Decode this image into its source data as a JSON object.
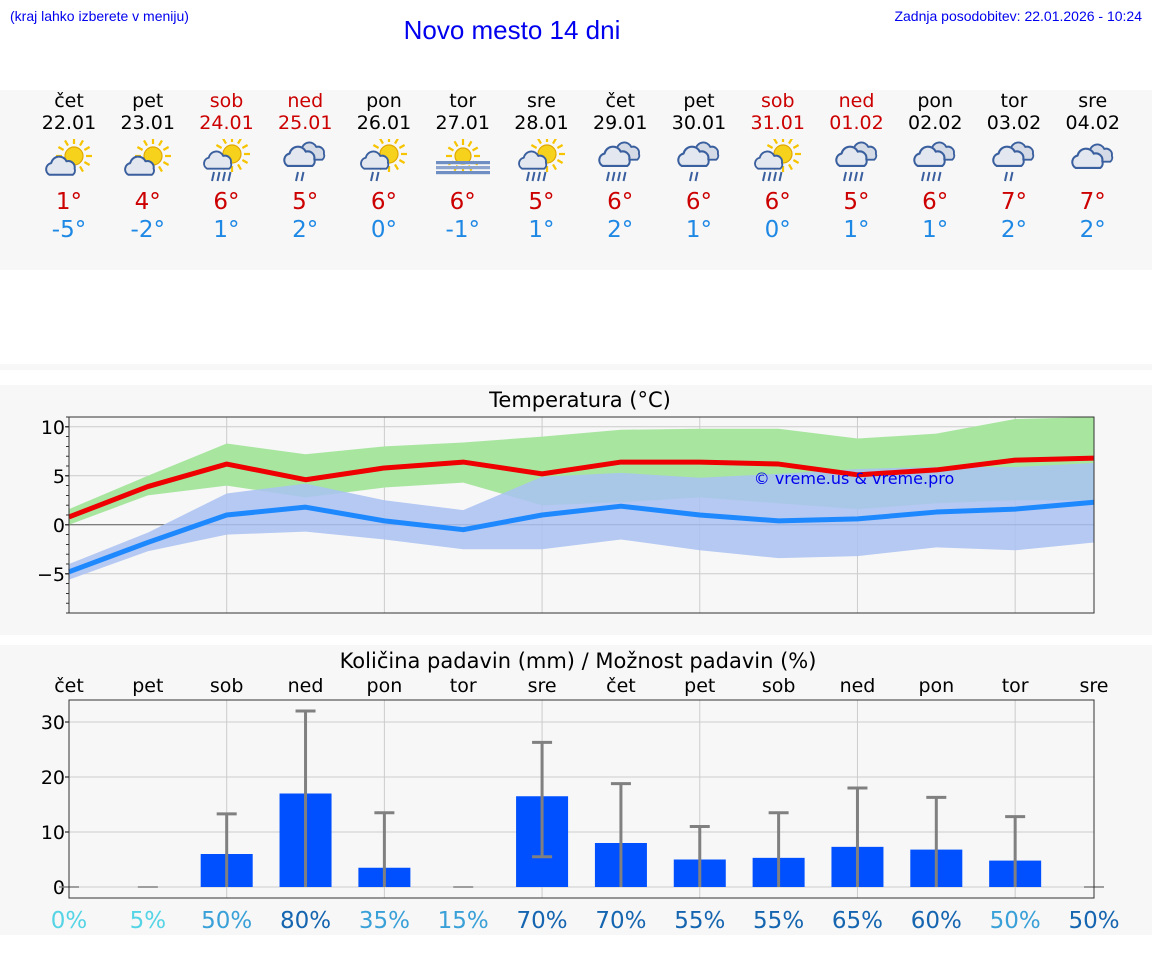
{
  "header": {
    "hint": "(kraj lahko izberete v meniju)",
    "title": "Novo mesto 14 dni",
    "updated": "Zadnja posodobitev: 22.01.2026 - 10:24"
  },
  "colors": {
    "weekend": "#cc0000",
    "max_line": "#ee0000",
    "min_line": "#1e88ff",
    "max_band": "#a8e6a0",
    "min_band": "#a9c1f2",
    "bar": "#0050ff",
    "link": "#0000ee"
  },
  "days": [
    {
      "name": "čet",
      "date": "22.01",
      "icon": "partly-cloudy-icon",
      "tmax": "1°",
      "tmin": "-5°",
      "weekend": false
    },
    {
      "name": "pet",
      "date": "23.01",
      "icon": "partly-cloudy-icon",
      "tmax": "4°",
      "tmin": "-2°",
      "weekend": false
    },
    {
      "name": "sob",
      "date": "24.01",
      "icon": "partly-cloudy-rain-icon",
      "tmax": "6°",
      "tmin": "1°",
      "weekend": true
    },
    {
      "name": "ned",
      "date": "25.01",
      "icon": "cloudy-light-rain-icon",
      "tmax": "5°",
      "tmin": "2°",
      "weekend": true
    },
    {
      "name": "pon",
      "date": "26.01",
      "icon": "partly-cloudy-light-rain-icon",
      "tmax": "6°",
      "tmin": "0°",
      "weekend": false
    },
    {
      "name": "tor",
      "date": "27.01",
      "icon": "sun-fog-icon",
      "tmax": "6°",
      "tmin": "-1°",
      "weekend": false
    },
    {
      "name": "sre",
      "date": "28.01",
      "icon": "partly-cloudy-rain-icon",
      "tmax": "5°",
      "tmin": "1°",
      "weekend": false
    },
    {
      "name": "čet",
      "date": "29.01",
      "icon": "cloudy-rain-icon",
      "tmax": "6°",
      "tmin": "2°",
      "weekend": false
    },
    {
      "name": "pet",
      "date": "30.01",
      "icon": "cloudy-light-rain-icon",
      "tmax": "6°",
      "tmin": "1°",
      "weekend": false
    },
    {
      "name": "sob",
      "date": "31.01",
      "icon": "partly-cloudy-rain-icon",
      "tmax": "6°",
      "tmin": "0°",
      "weekend": true
    },
    {
      "name": "ned",
      "date": "01.02",
      "icon": "cloudy-rain-icon",
      "tmax": "5°",
      "tmin": "1°",
      "weekend": true
    },
    {
      "name": "pon",
      "date": "02.02",
      "icon": "cloudy-rain-icon",
      "tmax": "6°",
      "tmin": "1°",
      "weekend": false
    },
    {
      "name": "tor",
      "date": "03.02",
      "icon": "cloudy-light-rain-icon",
      "tmax": "7°",
      "tmin": "2°",
      "weekend": false
    },
    {
      "name": "sre",
      "date": "04.02",
      "icon": "cloudy-icon",
      "tmax": "7°",
      "tmin": "2°",
      "weekend": false
    }
  ],
  "chart_data": [
    {
      "type": "line",
      "title": "Temperatura (°C)",
      "ylabel": "°C",
      "ylim": [
        -9,
        11
      ],
      "yticks": [
        10,
        5,
        0,
        -5
      ],
      "ytick_labels": [
        "10",
        "5",
        "0",
        "−5"
      ],
      "x": [
        0,
        1,
        2,
        3,
        4,
        5,
        6,
        7,
        8,
        9,
        10,
        11,
        12,
        13
      ],
      "watermark": "© vreme.us & vreme.pro",
      "series": [
        {
          "name": "max",
          "values": [
            0.8,
            3.9,
            6.2,
            4.6,
            5.8,
            6.4,
            5.2,
            6.4,
            6.4,
            6.2,
            5.1,
            5.6,
            6.6,
            6.8
          ]
        },
        {
          "name": "min",
          "values": [
            -4.8,
            -1.8,
            1.0,
            1.8,
            0.4,
            -0.5,
            1.0,
            1.9,
            1.0,
            0.4,
            0.6,
            1.3,
            1.6,
            2.3
          ]
        }
      ],
      "bands": [
        {
          "name": "max_range",
          "low": [
            0.0,
            3.0,
            4.0,
            2.8,
            3.8,
            4.3,
            2.0,
            2.3,
            2.8,
            2.2,
            1.6,
            2.2,
            2.5,
            2.5
          ],
          "high": [
            1.6,
            5.0,
            8.3,
            7.2,
            8.0,
            8.4,
            9.0,
            9.7,
            9.8,
            9.8,
            8.8,
            9.3,
            10.8,
            11.0
          ]
        },
        {
          "name": "min_range",
          "low": [
            -5.6,
            -2.7,
            -1.0,
            -0.7,
            -1.5,
            -2.5,
            -2.5,
            -1.5,
            -2.6,
            -3.4,
            -3.2,
            -2.3,
            -2.6,
            -1.8
          ],
          "high": [
            -4.0,
            -0.8,
            3.2,
            4.2,
            2.5,
            1.5,
            4.9,
            5.3,
            4.8,
            5.2,
            5.7,
            5.9,
            5.9,
            6.3
          ]
        }
      ]
    },
    {
      "type": "bar",
      "title": "Količina padavin (mm) / Možnost padavin (%)",
      "categories": [
        "čet",
        "pet",
        "sob",
        "ned",
        "pon",
        "tor",
        "sre",
        "čet",
        "pet",
        "sob",
        "ned",
        "pon",
        "tor",
        "sre"
      ],
      "ylim": [
        -2,
        34
      ],
      "yticks": [
        0,
        10,
        20,
        30
      ],
      "values": [
        0,
        0,
        6.0,
        17.0,
        3.5,
        0,
        16.5,
        8.0,
        5.0,
        5.3,
        7.3,
        6.8,
        4.8,
        0
      ],
      "err_low": [
        0,
        0,
        0,
        0,
        0,
        0,
        5.5,
        0,
        0,
        0,
        0,
        0,
        0,
        0
      ],
      "err_high": [
        0,
        0,
        13.3,
        32.0,
        13.5,
        0,
        26.3,
        18.8,
        11.0,
        13.5,
        18.0,
        16.3,
        12.8,
        0
      ],
      "chance": [
        "0%",
        "5%",
        "50%",
        "80%",
        "35%",
        "15%",
        "70%",
        "70%",
        "55%",
        "55%",
        "65%",
        "60%",
        "50%",
        "50%"
      ],
      "chance_colors": [
        "#55d4e6",
        "#55d4e6",
        "#3aa0d8",
        "#1565b0",
        "#3aa0d8",
        "#3aa0d8",
        "#1565b0",
        "#1565b0",
        "#1565b0",
        "#1565b0",
        "#1565b0",
        "#1565b0",
        "#3aa0d8",
        "#1565b0"
      ]
    }
  ]
}
